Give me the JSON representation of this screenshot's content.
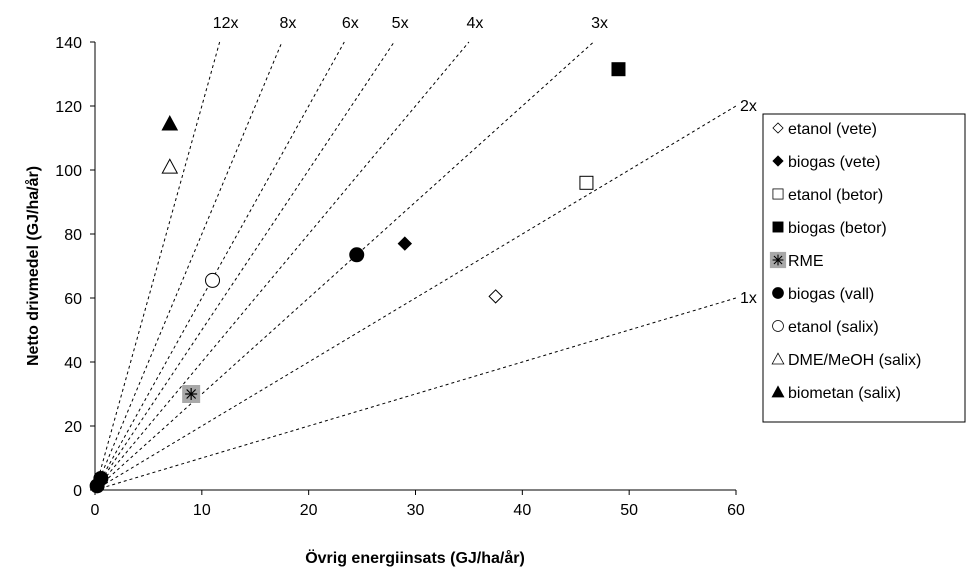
{
  "chart_data": {
    "type": "scatter",
    "xlabel": "Övrig energiinsats (GJ/ha/år)",
    "ylabel": "Netto drivmedel (GJ/ha/år)",
    "xlim": [
      0,
      60
    ],
    "ylim": [
      0,
      140
    ],
    "x_ticks": [
      "0",
      "10",
      "20",
      "30",
      "40",
      "50",
      "60"
    ],
    "y_ticks": [
      "0",
      "20",
      "40",
      "60",
      "80",
      "100",
      "120",
      "140"
    ],
    "grid": false,
    "legend_position": "right",
    "reference_lines": [
      {
        "label": "1x",
        "slope": 1
      },
      {
        "label": "2x",
        "slope": 2
      },
      {
        "label": "3x",
        "slope": 3
      },
      {
        "label": "4x",
        "slope": 4
      },
      {
        "label": "5x",
        "slope": 5
      },
      {
        "label": "6x",
        "slope": 6
      },
      {
        "label": "8x",
        "slope": 8
      },
      {
        "label": "12x",
        "slope": 12
      }
    ],
    "series": [
      {
        "name": "etanol (vete)",
        "marker": "diamond-open",
        "x": [
          37.5
        ],
        "y": [
          60.5
        ]
      },
      {
        "name": "biogas (vete)",
        "marker": "diamond-filled",
        "x": [
          29
        ],
        "y": [
          77
        ]
      },
      {
        "name": "etanol (betor)",
        "marker": "square-open",
        "x": [
          46
        ],
        "y": [
          96
        ]
      },
      {
        "name": "biogas (betor)",
        "marker": "square-filled",
        "x": [
          49
        ],
        "y": [
          131.5
        ]
      },
      {
        "name": "RME",
        "marker": "star-gray-box",
        "x": [
          9
        ],
        "y": [
          30
        ]
      },
      {
        "name": "biogas (vall)",
        "marker": "circle-filled",
        "x": [
          24.5
        ],
        "y": [
          73.5
        ]
      },
      {
        "name": "etanol (salix)",
        "marker": "circle-open",
        "x": [
          11
        ],
        "y": [
          65.5
        ]
      },
      {
        "name": "DME/MeOH (salix)",
        "marker": "triangle-open",
        "x": [
          7
        ],
        "y": [
          101
        ]
      },
      {
        "name": "biometan (salix)",
        "marker": "triangle-filled",
        "x": [
          7
        ],
        "y": [
          114.5
        ]
      }
    ]
  }
}
